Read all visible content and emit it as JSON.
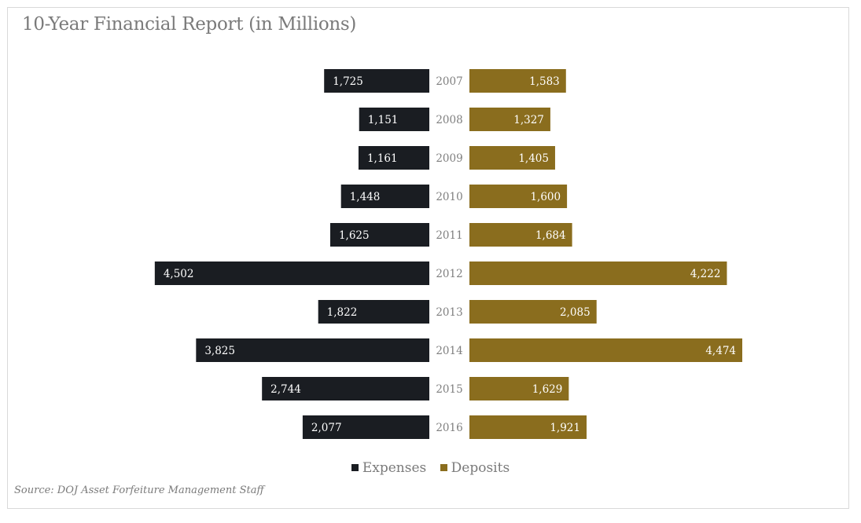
{
  "title": "10-Year Financial Report (in Millions)",
  "source": "Source: DOJ Asset Forfeiture Management Staff",
  "colors": {
    "expenses": "#1a1d22",
    "deposits": "#8a6d1e"
  },
  "legend": {
    "expenses": "Expenses",
    "deposits": "Deposits"
  },
  "chart_data": {
    "type": "bar",
    "orientation": "horizontal-diverging",
    "title": "10-Year Financial Report (in Millions)",
    "categories": [
      "2007",
      "2008",
      "2009",
      "2010",
      "2011",
      "2012",
      "2013",
      "2014",
      "2015",
      "2016"
    ],
    "series": [
      {
        "name": "Expenses",
        "side": "left",
        "values": [
          1725,
          1151,
          1161,
          1448,
          1625,
          4502,
          1822,
          3825,
          2744,
          2077
        ],
        "labels": [
          "1,725",
          "1,151",
          "1,161",
          "1,448",
          "1,625",
          "4,502",
          "1,822",
          "3,825",
          "2,744",
          "2,077"
        ]
      },
      {
        "name": "Deposits",
        "side": "right",
        "values": [
          1583,
          1327,
          1405,
          1600,
          1684,
          4222,
          2085,
          4474,
          1629,
          1921
        ],
        "labels": [
          "1,583",
          "1,327",
          "1,405",
          "1,600",
          "1,684",
          "4,222",
          "2,085",
          "4,474",
          "1,629",
          "1,921"
        ]
      }
    ],
    "legend_position": "bottom-center",
    "grid": false
  }
}
